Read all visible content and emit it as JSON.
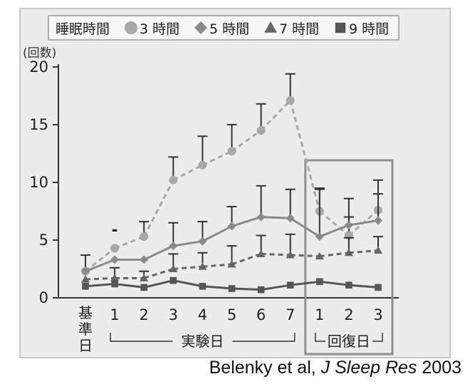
{
  "chart_data": {
    "type": "line",
    "ylabel": "(回数)",
    "ylim": [
      0,
      20
    ],
    "yticks": [
      0,
      5,
      10,
      15,
      20
    ],
    "categories": [
      "基準日",
      "1",
      "2",
      "3",
      "4",
      "5",
      "6",
      "7",
      "1",
      "2",
      "3"
    ],
    "legend": {
      "title": "睡眠時間",
      "items": [
        {
          "label": "3 時間",
          "marker": "circle"
        },
        {
          "label": "5 時間",
          "marker": "diamond"
        },
        {
          "label": "7 時間",
          "marker": "triangle"
        },
        {
          "label": "9 時間",
          "marker": "square"
        }
      ],
      "placement": "top"
    },
    "groups": [
      {
        "label": "実験日",
        "from": 1,
        "to": 7
      },
      {
        "label": "回復日",
        "from": 8,
        "to": 10,
        "boxed": true
      }
    ],
    "series": [
      {
        "name": "3 時間",
        "marker": "circle",
        "line": "dashed",
        "color": "#a8a8a8",
        "values": [
          2.3,
          4.3,
          5.3,
          10.2,
          11.5,
          12.7,
          14.5,
          17.1,
          7.5,
          5.4,
          7.6
        ],
        "error": [
          1.4,
          null,
          1.3,
          2.0,
          2.5,
          2.3,
          2.3,
          2.3,
          2.0,
          1.6,
          2.6
        ]
      },
      {
        "name": "5 時間",
        "marker": "diamond",
        "line": "solid",
        "color": "#8a8a8a",
        "values": [
          2.3,
          3.3,
          3.3,
          4.5,
          4.9,
          6.2,
          7.0,
          6.9,
          5.3,
          6.3,
          6.7
        ],
        "error": [
          null,
          null,
          null,
          2.0,
          1.7,
          1.7,
          2.7,
          2.5,
          4.1,
          2.3,
          2.3
        ]
      },
      {
        "name": "7 時間",
        "marker": "triangle",
        "line": "dashed",
        "color": "#666666",
        "values": [
          1.6,
          1.7,
          1.7,
          2.5,
          2.7,
          2.9,
          3.8,
          3.7,
          3.6,
          3.9,
          4.1
        ],
        "error": [
          null,
          0.9,
          0.6,
          1.3,
          1.2,
          1.6,
          1.6,
          1.8,
          null,
          1.3,
          1.2
        ]
      },
      {
        "name": "9 時間",
        "marker": "square",
        "line": "solid",
        "color": "#555555",
        "values": [
          1.0,
          1.2,
          0.9,
          1.5,
          1.0,
          0.8,
          0.7,
          1.1,
          1.4,
          1.1,
          0.9
        ],
        "error": [
          null,
          null,
          null,
          null,
          null,
          null,
          null,
          null,
          null,
          null,
          null
        ]
      }
    ],
    "annotations": [
      {
        "text": "-",
        "at_category": 1,
        "value": 5.8
      }
    ],
    "grid": false
  },
  "citation": {
    "authors": "Belenky et al, ",
    "journal": "J Sleep Res",
    "year": " 2003"
  },
  "colors": {
    "plot_bg": "#ececec",
    "frame": "#c8c8c8",
    "box": "#8f8f8f",
    "axis": "#333333"
  }
}
